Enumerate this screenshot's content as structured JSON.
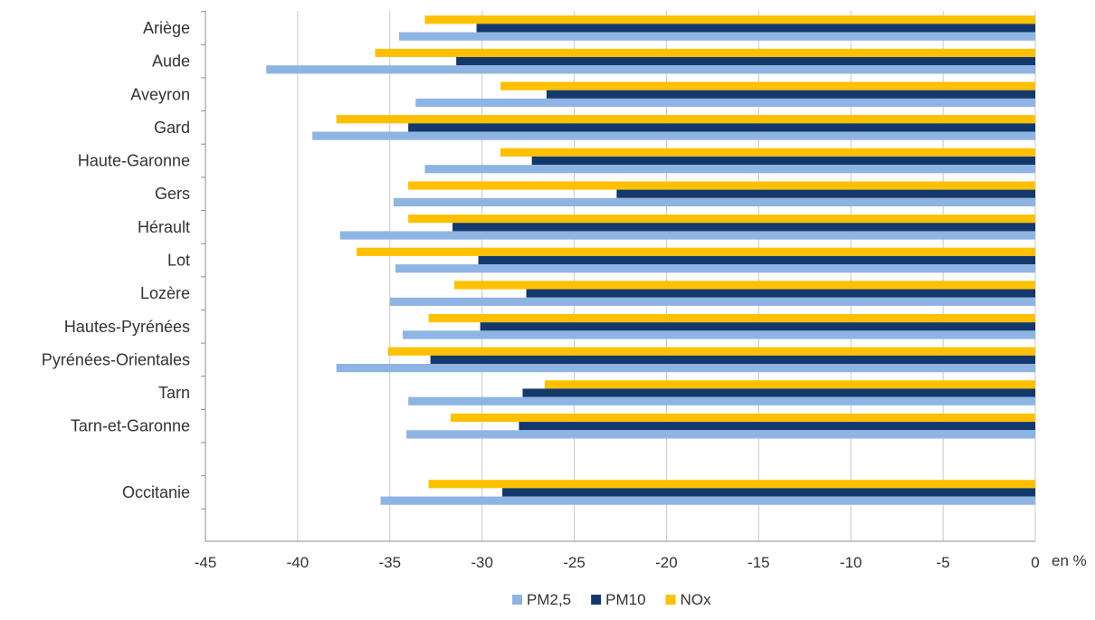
{
  "chart_data": {
    "type": "bar",
    "orientation": "horizontal",
    "categories": [
      "Ariège",
      "Aude",
      "Aveyron",
      "Gard",
      "Haute-Garonne",
      "Gers",
      "Hérault",
      "Lot",
      "Lozère",
      "Hautes-Pyrénées",
      "Pyrénées-Orientales",
      "Tarn",
      "Tarn-et-Garonne",
      "",
      "Occitanie"
    ],
    "series": [
      {
        "name": "NOx",
        "color": "#FFC000",
        "values": [
          -33.1,
          -35.8,
          -29.0,
          -37.9,
          -29.0,
          -34.0,
          -34.0,
          -36.8,
          -31.5,
          -32.9,
          -35.1,
          -26.6,
          -31.7,
          null,
          -32.9
        ]
      },
      {
        "name": "PM10",
        "color": "#13386B",
        "values": [
          -30.3,
          -31.4,
          -26.5,
          -34.0,
          -27.3,
          -22.7,
          -31.6,
          -30.2,
          -27.6,
          -30.1,
          -32.8,
          -27.8,
          -28.0,
          null,
          -28.9
        ]
      },
      {
        "name": "PM2,5",
        "color": "#8EB4E3",
        "values": [
          -34.5,
          -41.7,
          -33.6,
          -39.2,
          -33.1,
          -34.8,
          -37.7,
          -34.7,
          -35.0,
          -34.3,
          -37.9,
          -34.0,
          -34.1,
          null,
          -35.5
        ]
      }
    ],
    "legend_order": [
      "PM2,5",
      "PM10",
      "NOx"
    ],
    "xticks": [
      -45,
      -40,
      -35,
      -30,
      -25,
      -20,
      -15,
      -10,
      -5,
      0
    ],
    "xlim": [
      -45,
      0
    ],
    "xlabel": "en %",
    "title": "",
    "grid": true,
    "legend_position": "bottom"
  }
}
